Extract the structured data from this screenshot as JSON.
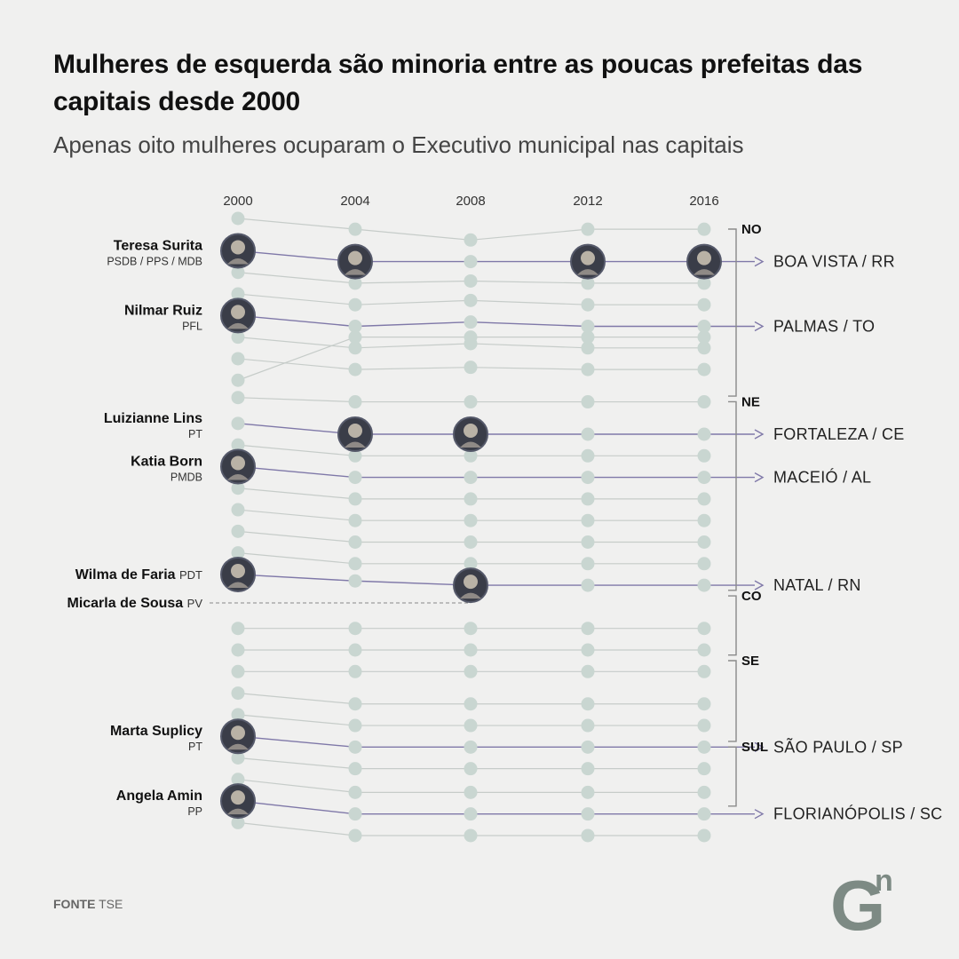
{
  "title": "Mulheres de esquerda são minoria entre as poucas prefeitas das capitais desde 2000",
  "subtitle": "Apenas oito mulheres ocuparam o Executivo municipal nas capitais",
  "source": {
    "label": "FONTE",
    "value": "TSE"
  },
  "logo": {
    "text": "G",
    "superscript": "n"
  },
  "colors": {
    "background": "#f0f0ef",
    "dot": "#c9d6d1",
    "grey_line": "#c6ccc9",
    "highlight_line": "#7f78a8",
    "bracket": "#8a8a8a",
    "logo": "#7d8a84"
  },
  "chart_data": {
    "type": "slope",
    "x": [
      2000,
      2004,
      2008,
      2012,
      2016
    ],
    "x_tick_labels": [
      "2000",
      "2004",
      "2008",
      "2012",
      "2016"
    ],
    "note": "dot values are vertical rank positions (lower = higher up); one line per capital city",
    "regions": [
      {
        "label": "NO",
        "rank_from": 1,
        "rank_to": 8
      },
      {
        "label": "NE",
        "rank_from": 9,
        "rank_to": 17
      },
      {
        "label": "CO",
        "rank_from": 18,
        "rank_to": 20
      },
      {
        "label": "SE",
        "rank_from": 21,
        "rank_to": 24
      },
      {
        "label": "SUL",
        "rank_from": 25,
        "rank_to": 27
      }
    ],
    "cities": [
      {
        "ranks": [
          1,
          1.5,
          2,
          1.5,
          1.5
        ]
      },
      {
        "label": "BOA VISTA / RR",
        "ranks": [
          2.5,
          3,
          3,
          3,
          3
        ],
        "highlight": true,
        "photos": [
          0,
          1,
          3,
          4
        ]
      },
      {
        "ranks": [
          3.5,
          4,
          3.9,
          4,
          4
        ]
      },
      {
        "ranks": [
          4.5,
          5,
          4.8,
          5,
          5
        ]
      },
      {
        "label": "PALMAS / TO",
        "ranks": [
          5.5,
          6,
          5.8,
          6,
          6
        ],
        "highlight": true,
        "photos": [
          0
        ]
      },
      {
        "ranks": [
          6.5,
          7,
          6.8,
          7,
          7
        ]
      },
      {
        "ranks": [
          7.5,
          8,
          7.9,
          8,
          8
        ]
      },
      {
        "ranks": [
          8.5,
          6.5,
          6.5,
          6.5,
          6.5
        ]
      },
      {
        "ranks": [
          9.3,
          9.5,
          9.5,
          9.5,
          9.5
        ]
      },
      {
        "label": "FORTALEZA / CE",
        "ranks": [
          10.5,
          11,
          11,
          11,
          11
        ],
        "highlight": true,
        "photos": [
          1,
          2
        ]
      },
      {
        "ranks": [
          11.5,
          12,
          12,
          12,
          12
        ]
      },
      {
        "label": "MACEIÓ / AL",
        "ranks": [
          12.5,
          13,
          13,
          13,
          13
        ],
        "highlight": true,
        "photos": [
          0
        ]
      },
      {
        "ranks": [
          13.5,
          14,
          14,
          14,
          14
        ]
      },
      {
        "ranks": [
          14.5,
          15,
          15,
          15,
          15
        ]
      },
      {
        "ranks": [
          15.5,
          16,
          16,
          16,
          16
        ]
      },
      {
        "ranks": [
          16.5,
          17,
          17,
          17,
          17
        ]
      },
      {
        "label": "NATAL / RN",
        "ranks": [
          17.5,
          17.8,
          18,
          18,
          18
        ],
        "highlight": true,
        "photos": [
          0,
          2
        ]
      },
      {
        "ranks": [
          20,
          20,
          20,
          20,
          20
        ]
      },
      {
        "ranks": [
          21,
          21,
          21,
          21,
          21
        ]
      },
      {
        "ranks": [
          22,
          22,
          22,
          22,
          22
        ]
      },
      {
        "ranks": [
          23,
          23.5,
          23.5,
          23.5,
          23.5
        ]
      },
      {
        "ranks": [
          24,
          24.5,
          24.5,
          24.5,
          24.5
        ]
      },
      {
        "label": "SÃO PAULO / SP",
        "ranks": [
          25,
          25.5,
          25.5,
          25.5,
          25.5
        ],
        "highlight": true,
        "photos": [
          0
        ]
      },
      {
        "ranks": [
          26,
          26.5,
          26.5,
          26.5,
          26.5
        ]
      },
      {
        "ranks": [
          27,
          27.6,
          27.6,
          27.6,
          27.6
        ]
      },
      {
        "label": "FLORIANÓPOLIS / SC",
        "ranks": [
          28,
          28.6,
          28.6,
          28.6,
          28.6
        ],
        "highlight": true,
        "photos": [
          0
        ]
      },
      {
        "ranks": [
          29,
          29.6,
          29.6,
          29.6,
          29.6
        ]
      }
    ],
    "mayors": [
      {
        "name": "Teresa Surita",
        "party": "PSDB / PPS / MDB",
        "city": "BOA VISTA / RR",
        "party_inline": false
      },
      {
        "name": "Nilmar Ruiz",
        "party": "PFL",
        "city": "PALMAS / TO",
        "party_inline": false
      },
      {
        "name": "Luizianne Lins",
        "party": "PT",
        "city": "FORTALEZA / CE",
        "party_inline": false
      },
      {
        "name": "Katia Born",
        "party": "PMDB",
        "city": "MACEIÓ / AL",
        "party_inline": false
      },
      {
        "name": "Wilma de Faria",
        "party": "PDT",
        "city": "NATAL / RN",
        "party_inline": true
      },
      {
        "name": "Micarla de Sousa",
        "party": "PV",
        "city": "NATAL / RN",
        "party_inline": true,
        "dashed_link_to_year": 2008
      },
      {
        "name": "Marta Suplicy",
        "party": "PT",
        "city": "SÃO PAULO / SP",
        "party_inline": false
      },
      {
        "name": "Angela Amin",
        "party": "PP",
        "city": "FLORIANÓPOLIS / SC",
        "party_inline": false
      }
    ]
  }
}
